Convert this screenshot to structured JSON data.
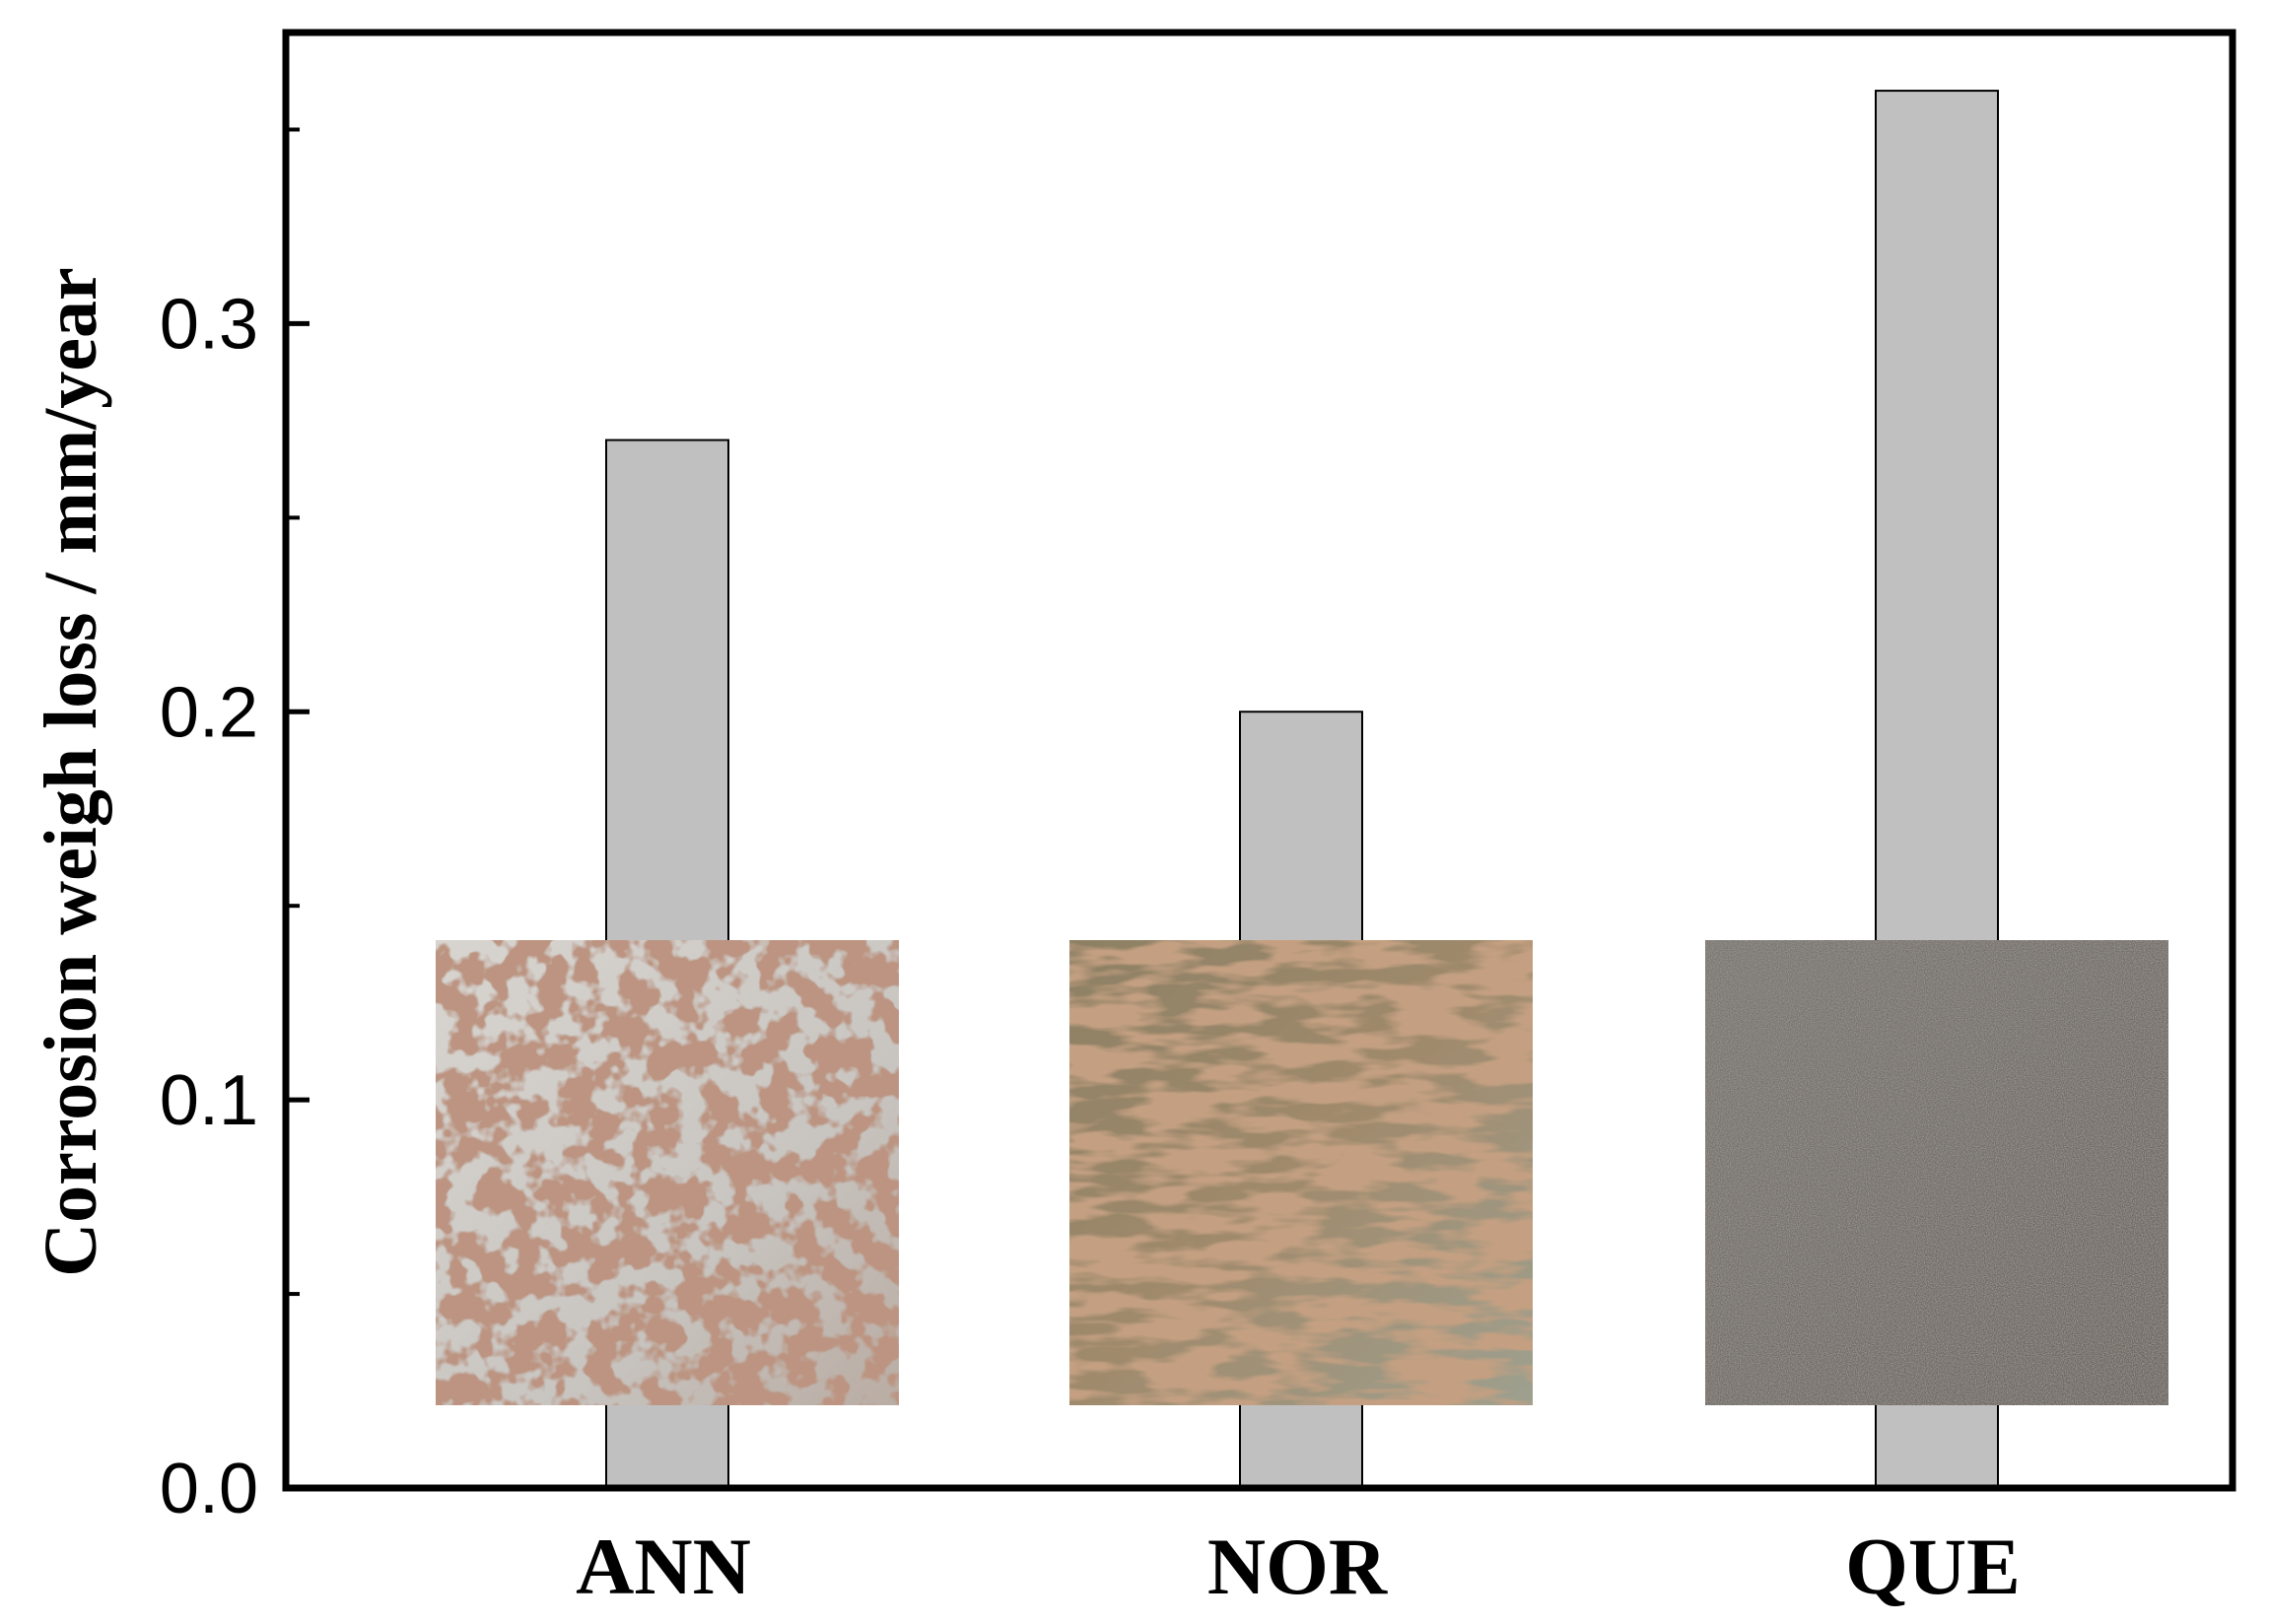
{
  "chart_data": {
    "type": "bar",
    "categories": [
      "ANN",
      "NOR",
      "QUE"
    ],
    "values": [
      0.27,
      0.2,
      0.36
    ],
    "title": "",
    "xlabel": "",
    "ylabel": "Corrosion weigh loss / mm/year",
    "ylim": [
      0,
      0.375
    ],
    "yticks": [
      "0.0",
      "0.1",
      "0.2",
      "0.3"
    ],
    "grid": false,
    "legend": "none",
    "bar_color": "#c0c0c0",
    "inset_images": [
      {
        "category": "ANN",
        "depicts": "steel-sample-surface-with-rust-spots"
      },
      {
        "category": "NOR",
        "depicts": "steel-sample-surface-with-rust-streaks"
      },
      {
        "category": "QUE",
        "depicts": "steel-sample-dark-grey-surface"
      }
    ]
  }
}
